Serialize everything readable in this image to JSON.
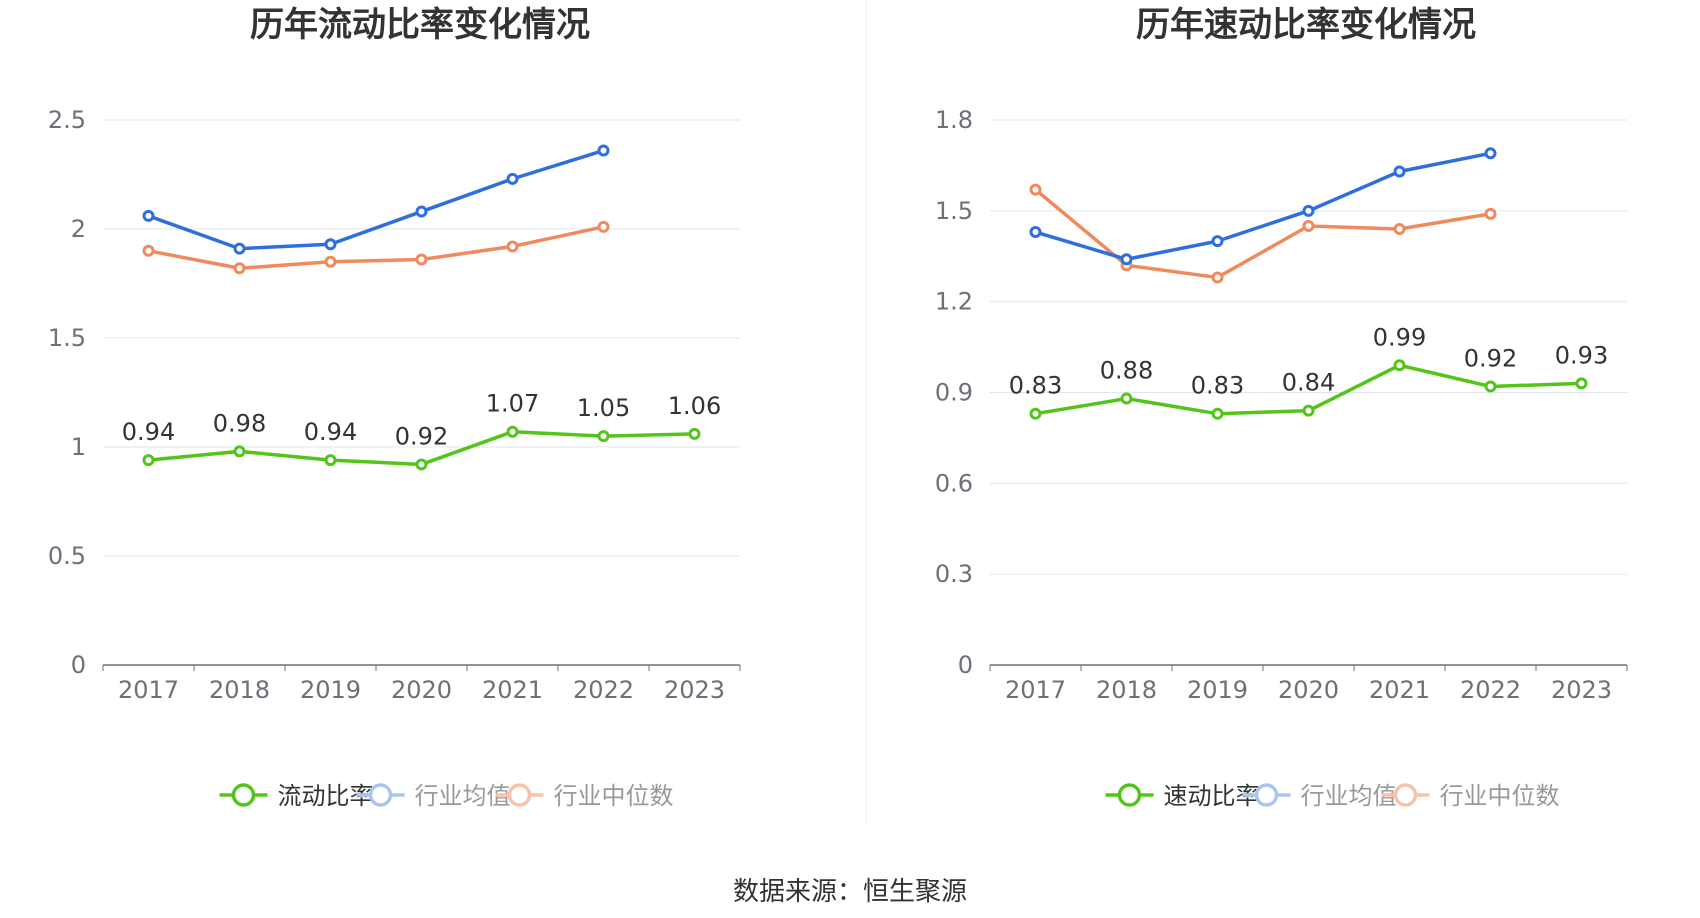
{
  "chart_data": [
    {
      "type": "line",
      "title": "历年流动比率变化情况",
      "categories": [
        "2017",
        "2018",
        "2019",
        "2020",
        "2021",
        "2022",
        "2023"
      ],
      "ylim": [
        0,
        2.5
      ],
      "yticks": [
        "0",
        "0.5",
        "1",
        "1.5",
        "2",
        "2.5"
      ],
      "grid": true,
      "legend_position": "bottom",
      "series": [
        {
          "name": "流动比率",
          "color": "#52c41a",
          "values": [
            0.94,
            0.98,
            0.94,
            0.92,
            1.07,
            1.05,
            1.06
          ],
          "labels": [
            "0.94",
            "0.98",
            "0.94",
            "0.92",
            "1.07",
            "1.05",
            "1.06"
          ]
        },
        {
          "name": "行业均值",
          "color": "#2f6fdc",
          "values": [
            2.06,
            1.91,
            1.93,
            2.08,
            2.23,
            2.36,
            null
          ]
        },
        {
          "name": "行业中位数",
          "color": "#f08a5d",
          "values": [
            1.9,
            1.82,
            1.85,
            1.86,
            1.92,
            2.01,
            null
          ]
        }
      ]
    },
    {
      "type": "line",
      "title": "历年速动比率变化情况",
      "categories": [
        "2017",
        "2018",
        "2019",
        "2020",
        "2021",
        "2022",
        "2023"
      ],
      "ylim": [
        0,
        1.8
      ],
      "yticks": [
        "0",
        "0.3",
        "0.6",
        "0.9",
        "1.2",
        "1.5",
        "1.8"
      ],
      "grid": true,
      "legend_position": "bottom",
      "series": [
        {
          "name": "速动比率",
          "color": "#52c41a",
          "values": [
            0.83,
            0.88,
            0.83,
            0.84,
            0.99,
            0.92,
            0.93
          ],
          "labels": [
            "0.83",
            "0.88",
            "0.83",
            "0.84",
            "0.99",
            "0.92",
            "0.93"
          ]
        },
        {
          "name": "行业均值",
          "color": "#2f6fdc",
          "values": [
            1.43,
            1.34,
            1.4,
            1.5,
            1.63,
            1.69,
            null
          ]
        },
        {
          "name": "行业中位数",
          "color": "#f08a5d",
          "values": [
            1.57,
            1.32,
            1.28,
            1.45,
            1.44,
            1.49,
            null
          ]
        }
      ]
    }
  ],
  "legend_faded_colors": [
    "#a9c4f2",
    "#f8c2a8"
  ],
  "divider_color": "#eeeeee",
  "source": "数据来源：恒生聚源"
}
